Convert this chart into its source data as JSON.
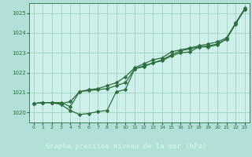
{
  "fig_bg": "#b0e0d8",
  "plot_bg": "#cdf0ea",
  "grid_color": "#99ccbb",
  "line_color": "#2d6e3e",
  "label_bg": "#2d6e3e",
  "label_fg": "#cdf0ea",
  "xlabel": "Graphe pression niveau de la mer (hPa)",
  "ylim": [
    1019.5,
    1025.5
  ],
  "xlim": [
    -0.5,
    23.5
  ],
  "yticks": [
    1020,
    1021,
    1022,
    1023,
    1024,
    1025
  ],
  "xticks": [
    0,
    1,
    2,
    3,
    4,
    5,
    6,
    7,
    8,
    9,
    10,
    11,
    12,
    13,
    14,
    15,
    16,
    17,
    18,
    19,
    20,
    21,
    22,
    23
  ],
  "s1_x": [
    0,
    1,
    2,
    3,
    4,
    5,
    6,
    7,
    8,
    9,
    10,
    11,
    12,
    13,
    14,
    15,
    16,
    17,
    18,
    19,
    20,
    21,
    22,
    23
  ],
  "s1_y": [
    1020.45,
    1020.5,
    1020.5,
    1020.4,
    1020.1,
    1019.9,
    1019.95,
    1020.05,
    1020.1,
    1021.05,
    1021.15,
    1022.2,
    1022.3,
    1022.5,
    1022.6,
    1022.85,
    1023.0,
    1023.05,
    1023.3,
    1023.3,
    1023.4,
    1023.7,
    1024.45,
    1025.2
  ],
  "s2_x": [
    0,
    1,
    2,
    3,
    4,
    5,
    6,
    7,
    8,
    9,
    10,
    11,
    12,
    13,
    14,
    15,
    16,
    17,
    18,
    19,
    20,
    21,
    22,
    23
  ],
  "s2_y": [
    1020.45,
    1020.5,
    1020.5,
    1020.5,
    1020.3,
    1021.05,
    1021.1,
    1021.15,
    1021.2,
    1021.35,
    1021.5,
    1022.2,
    1022.35,
    1022.5,
    1022.65,
    1022.9,
    1023.1,
    1023.2,
    1023.3,
    1023.35,
    1023.45,
    1023.7,
    1024.5,
    1025.2
  ],
  "s3_x": [
    0,
    1,
    2,
    3,
    4,
    5,
    6,
    7,
    8,
    9,
    10,
    11,
    12,
    13,
    14,
    15,
    16,
    17,
    18,
    19,
    20,
    21,
    22,
    23
  ],
  "s3_y": [
    1020.45,
    1020.5,
    1020.5,
    1020.45,
    1020.55,
    1021.05,
    1021.15,
    1021.2,
    1021.35,
    1021.5,
    1021.8,
    1022.25,
    1022.45,
    1022.65,
    1022.75,
    1023.05,
    1023.15,
    1023.25,
    1023.35,
    1023.45,
    1023.55,
    1023.75,
    1024.5,
    1025.25
  ]
}
